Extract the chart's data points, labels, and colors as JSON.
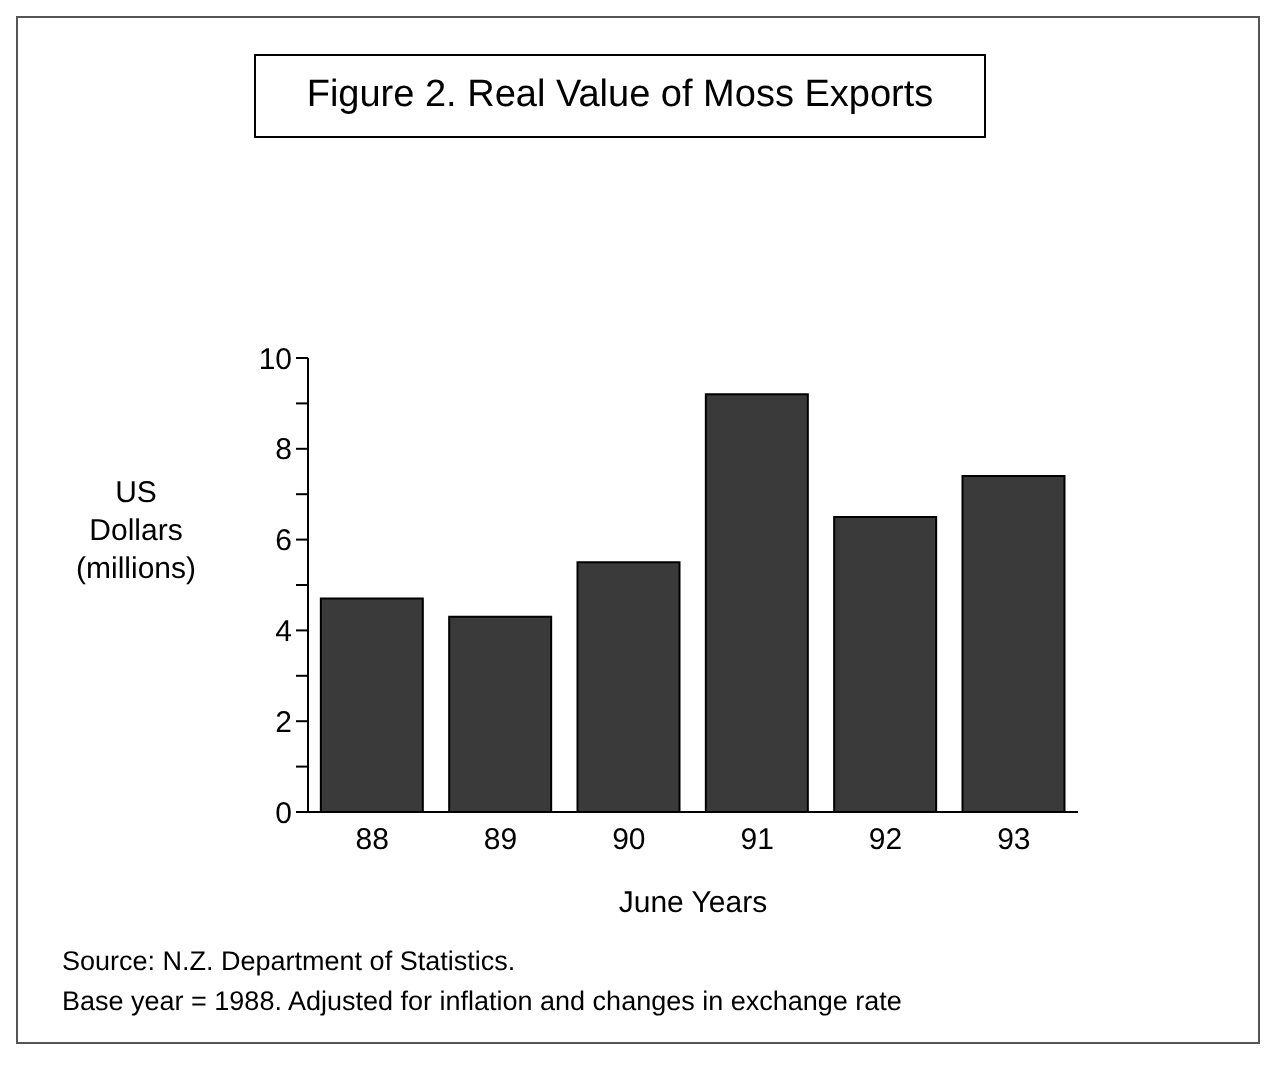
{
  "chart_data": {
    "type": "bar",
    "title": "Figure 2.  Real Value of Moss Exports",
    "xlabel": "June Years",
    "ylabel": "US\nDollars\n(millions)",
    "categories": [
      "88",
      "89",
      "90",
      "91",
      "92",
      "93"
    ],
    "values": [
      4.7,
      4.3,
      5.5,
      9.2,
      6.5,
      7.4
    ],
    "color": "#3a3a3a",
    "ylim": [
      0,
      10
    ],
    "yticks": [
      0,
      {
        "value": 1,
        "label": null
      },
      2,
      {
        "value": 3,
        "label": null
      },
      4,
      {
        "value": 5,
        "label": null
      },
      6,
      {
        "value": 7,
        "label": null
      },
      8,
      {
        "value": 9,
        "label": null
      },
      10
    ],
    "grid": false,
    "annotations": [
      "Source: N.Z. Department of Statistics.",
      "Base year = 1988.  Adjusted for inflation and changes in exchange rate"
    ]
  }
}
